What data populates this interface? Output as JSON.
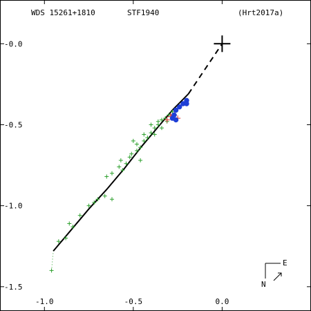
{
  "header": {
    "left": "WDS 15261+1810",
    "center": "STF1940",
    "right": "(Hrt2017a)"
  },
  "compass": {
    "east": "E",
    "north": "N"
  },
  "chart_data": {
    "type": "scatter",
    "xlim": [
      -1.25,
      0.5
    ],
    "ylim": [
      -1.65,
      0.27
    ],
    "x_ticks": [
      {
        "v": -1.0,
        "label": "-1.0"
      },
      {
        "v": -0.5,
        "label": "-0.5"
      },
      {
        "v": 0.0,
        "label": "0.0"
      }
    ],
    "y_ticks": [
      {
        "v": 0.0,
        "label": "-0.0"
      },
      {
        "v": -0.5,
        "label": "-0.5"
      },
      {
        "v": -1.0,
        "label": "-1.0"
      },
      {
        "v": -1.5,
        "label": "-1.5"
      }
    ],
    "primary": {
      "x": 0.0,
      "y": 0.0
    },
    "orbit_solid": [
      [
        -0.95,
        -1.28
      ],
      [
        -0.85,
        -1.15
      ],
      [
        -0.75,
        -1.02
      ],
      [
        -0.65,
        -0.9
      ],
      [
        -0.55,
        -0.77
      ],
      [
        -0.45,
        -0.63
      ],
      [
        -0.35,
        -0.5
      ],
      [
        -0.28,
        -0.41
      ],
      [
        -0.19,
        -0.31
      ]
    ],
    "orbit_dashed": [
      [
        -0.19,
        -0.31
      ],
      [
        0.0,
        0.0
      ]
    ],
    "orbit_dotted": [
      [
        -0.96,
        -1.4
      ],
      [
        -0.95,
        -1.28
      ]
    ],
    "green_obs": [
      [
        -0.96,
        -1.4
      ],
      [
        -0.92,
        -1.22
      ],
      [
        -0.88,
        -1.2
      ],
      [
        -0.86,
        -1.11
      ],
      [
        -0.84,
        -1.13
      ],
      [
        -0.8,
        -1.06
      ],
      [
        -0.75,
        -1.0
      ],
      [
        -0.72,
        -0.98
      ],
      [
        -0.7,
        -0.96
      ],
      [
        -0.66,
        -0.94
      ],
      [
        -0.62,
        -0.96
      ],
      [
        -0.65,
        -0.82
      ],
      [
        -0.62,
        -0.8
      ],
      [
        -0.58,
        -0.76
      ],
      [
        -0.56,
        -0.78
      ],
      [
        -0.57,
        -0.72
      ],
      [
        -0.54,
        -0.74
      ],
      [
        -0.52,
        -0.7
      ],
      [
        -0.51,
        -0.68
      ],
      [
        -0.48,
        -0.66
      ],
      [
        -0.46,
        -0.72
      ],
      [
        -0.46,
        -0.64
      ],
      [
        -0.44,
        -0.6
      ],
      [
        -0.42,
        -0.58
      ],
      [
        -0.4,
        -0.55
      ],
      [
        -0.38,
        -0.52
      ],
      [
        -0.36,
        -0.48
      ],
      [
        -0.34,
        -0.47
      ],
      [
        -0.32,
        -0.46
      ],
      [
        -0.3,
        -0.44
      ],
      [
        -0.28,
        -0.42
      ],
      [
        -0.26,
        -0.41
      ],
      [
        -0.44,
        -0.56
      ],
      [
        -0.4,
        -0.5
      ],
      [
        -0.36,
        -0.5
      ],
      [
        -0.38,
        -0.56
      ],
      [
        -0.5,
        -0.6
      ],
      [
        -0.48,
        -0.62
      ],
      [
        -0.34,
        -0.52
      ],
      [
        -0.31,
        -0.48
      ]
    ],
    "red_obs": [
      [
        -0.31,
        -0.47
      ],
      [
        -0.29,
        -0.45
      ],
      [
        -0.27,
        -0.44
      ],
      [
        -0.25,
        -0.46
      ]
    ],
    "blue_obs": [
      [
        -0.28,
        -0.46
      ],
      [
        -0.26,
        -0.47
      ],
      [
        -0.26,
        -0.41
      ],
      [
        -0.24,
        -0.39
      ],
      [
        -0.22,
        -0.37
      ],
      [
        -0.2,
        -0.35
      ],
      [
        -0.2,
        -0.37
      ],
      [
        -0.27,
        -0.44
      ]
    ],
    "residuals": [
      [
        [
          -0.28,
          -0.46
        ],
        [
          -0.29,
          -0.43
        ]
      ],
      [
        [
          -0.26,
          -0.47
        ],
        [
          -0.28,
          -0.44
        ]
      ],
      [
        [
          -0.26,
          -0.41
        ],
        [
          -0.27,
          -0.42
        ]
      ],
      [
        [
          -0.24,
          -0.39
        ],
        [
          -0.25,
          -0.4
        ]
      ],
      [
        [
          -0.22,
          -0.37
        ],
        [
          -0.23,
          -0.37
        ]
      ],
      [
        [
          -0.2,
          -0.35
        ],
        [
          -0.21,
          -0.34
        ]
      ]
    ]
  }
}
